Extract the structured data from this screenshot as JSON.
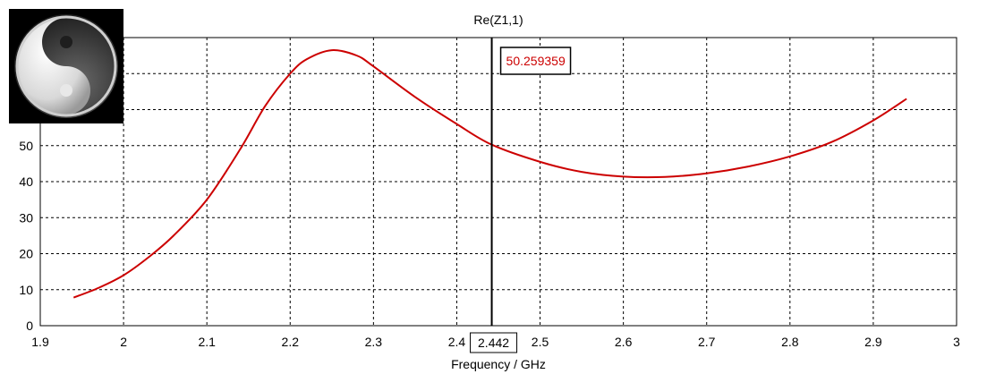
{
  "chart_data": {
    "type": "line",
    "title": "Re(Z1,1)",
    "xlabel": "Frequency / GHz",
    "ylabel": "",
    "xlim": [
      1.9,
      3.0
    ],
    "ylim": [
      0,
      80
    ],
    "grid": true,
    "x_ticks": [
      "1.9",
      "2",
      "2.1",
      "2.2",
      "2.3",
      "2.4",
      "2.5",
      "2.6",
      "2.7",
      "2.8",
      "2.9",
      "3"
    ],
    "y_ticks": [
      "0",
      "10",
      "20",
      "30",
      "40",
      "50"
    ],
    "series": [
      {
        "color": "#cc0000",
        "x": [
          1.94,
          1.97,
          2.0,
          2.03,
          2.06,
          2.1,
          2.14,
          2.17,
          2.2,
          2.22,
          2.25,
          2.28,
          2.3,
          2.35,
          2.4,
          2.442,
          2.5,
          2.55,
          2.6,
          2.65,
          2.7,
          2.75,
          2.8,
          2.85,
          2.9,
          2.94
        ],
        "y": [
          7.8,
          10.5,
          14,
          19,
          25,
          35,
          49,
          61,
          70,
          74,
          76.5,
          75,
          72,
          63.5,
          56,
          50.26,
          45.5,
          42.7,
          41.4,
          41.3,
          42.3,
          44.2,
          47,
          51,
          57,
          63
        ]
      }
    ],
    "marker": {
      "x": 2.442,
      "x_label": "2.442",
      "value_label": "50.259359"
    }
  },
  "logo": {
    "name": "yin-yang"
  }
}
